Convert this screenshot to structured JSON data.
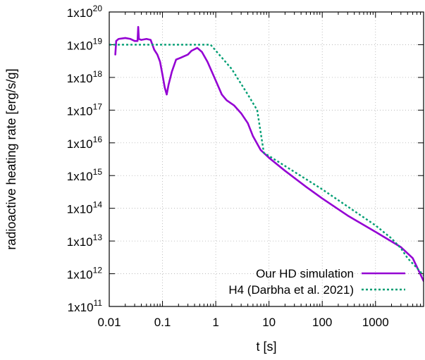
{
  "chart_data": {
    "type": "line",
    "xlabel": "t [s]",
    "ylabel": "radioactive heating rate [erg/s/g]",
    "xscale": "log",
    "yscale": "log",
    "xlim": [
      0.01,
      8000
    ],
    "ylim": [
      100000000000.0,
      1e+20
    ],
    "grid": true,
    "legend_position": "bottom-right",
    "x_ticks": [
      {
        "value": 0.01,
        "label": "0.01"
      },
      {
        "value": 0.1,
        "label": "0.1"
      },
      {
        "value": 1,
        "label": "1"
      },
      {
        "value": 10,
        "label": "10"
      },
      {
        "value": 100,
        "label": "100"
      },
      {
        "value": 1000,
        "label": "1000"
      }
    ],
    "y_ticks": [
      {
        "value": 100000000000.0,
        "base": "1x10",
        "exp": "11"
      },
      {
        "value": 1000000000000.0,
        "base": "1x10",
        "exp": "12"
      },
      {
        "value": 10000000000000.0,
        "base": "1x10",
        "exp": "13"
      },
      {
        "value": 100000000000000.0,
        "base": "1x10",
        "exp": "14"
      },
      {
        "value": 1000000000000000.0,
        "base": "1x10",
        "exp": "15"
      },
      {
        "value": 1e+16,
        "base": "1x10",
        "exp": "16"
      },
      {
        "value": 1e+17,
        "base": "1x10",
        "exp": "17"
      },
      {
        "value": 1e+18,
        "base": "1x10",
        "exp": "18"
      },
      {
        "value": 1e+19,
        "base": "1x10",
        "exp": "19"
      },
      {
        "value": 1e+20,
        "base": "1x10",
        "exp": "20"
      }
    ],
    "series": [
      {
        "name": "Our HD simulation",
        "color": "#9400d3",
        "style": "solid",
        "points": [
          [
            0.013,
            5e+18
          ],
          [
            0.0135,
            1.3e+19
          ],
          [
            0.015,
            1.5e+19
          ],
          [
            0.02,
            1.6e+19
          ],
          [
            0.025,
            1.5e+19
          ],
          [
            0.03,
            1.3e+19
          ],
          [
            0.034,
            1.3e+19
          ],
          [
            0.035,
            3.5e+19
          ],
          [
            0.036,
            1.5e+19
          ],
          [
            0.04,
            1.4e+19
          ],
          [
            0.05,
            1.5e+19
          ],
          [
            0.06,
            1.4e+19
          ],
          [
            0.07,
            7e+18
          ],
          [
            0.08,
            5e+18
          ],
          [
            0.09,
            3e+18
          ],
          [
            0.1,
            1.2e+18
          ],
          [
            0.11,
            5e+17
          ],
          [
            0.12,
            3e+17
          ],
          [
            0.13,
            6e+17
          ],
          [
            0.15,
            1.5e+18
          ],
          [
            0.18,
            3.5e+18
          ],
          [
            0.22,
            4e+18
          ],
          [
            0.3,
            5e+18
          ],
          [
            0.35,
            6.5e+18
          ],
          [
            0.45,
            8e+18
          ],
          [
            0.55,
            6e+18
          ],
          [
            0.7,
            3e+18
          ],
          [
            1.0,
            8e+17
          ],
          [
            1.3,
            3e+17
          ],
          [
            1.6,
            2e+17
          ],
          [
            2.2,
            1.4e+17
          ],
          [
            3,
            8e+16
          ],
          [
            4,
            4e+16
          ],
          [
            5,
            1.6e+16
          ],
          [
            7,
            6000000000000000.0
          ],
          [
            10,
            3500000000000000.0
          ],
          [
            20,
            1400000000000000.0
          ],
          [
            50,
            450000000000000.0
          ],
          [
            100,
            200000000000000.0
          ],
          [
            300,
            60000000000000.0
          ],
          [
            1000,
            19000000000000.0
          ],
          [
            3000,
            6500000000000.0
          ],
          [
            5000,
            3000000000000.0
          ],
          [
            8000,
            600000000000.0
          ]
        ]
      },
      {
        "name": "H4 (Darbha et al. 2021)",
        "color": "#009e73",
        "style": "dotted",
        "points": [
          [
            0.01,
            1e+19
          ],
          [
            0.05,
            1e+19
          ],
          [
            0.1,
            1e+19
          ],
          [
            0.5,
            1e+19
          ],
          [
            0.8,
            1e+19
          ],
          [
            2,
            1.8e+18
          ],
          [
            4,
            3e+17
          ],
          [
            6,
            1e+17
          ],
          [
            8,
            5000000000000000.0
          ],
          [
            100,
            380000000000000.0
          ],
          [
            1000,
            30000000000000.0
          ],
          [
            2000,
            12000000000000.0
          ],
          [
            3000,
            6000000000000.0
          ],
          [
            4000,
            3000000000000.0
          ],
          [
            6000,
            1500000000000.0
          ],
          [
            8000,
            900000000000.0
          ]
        ]
      }
    ]
  }
}
